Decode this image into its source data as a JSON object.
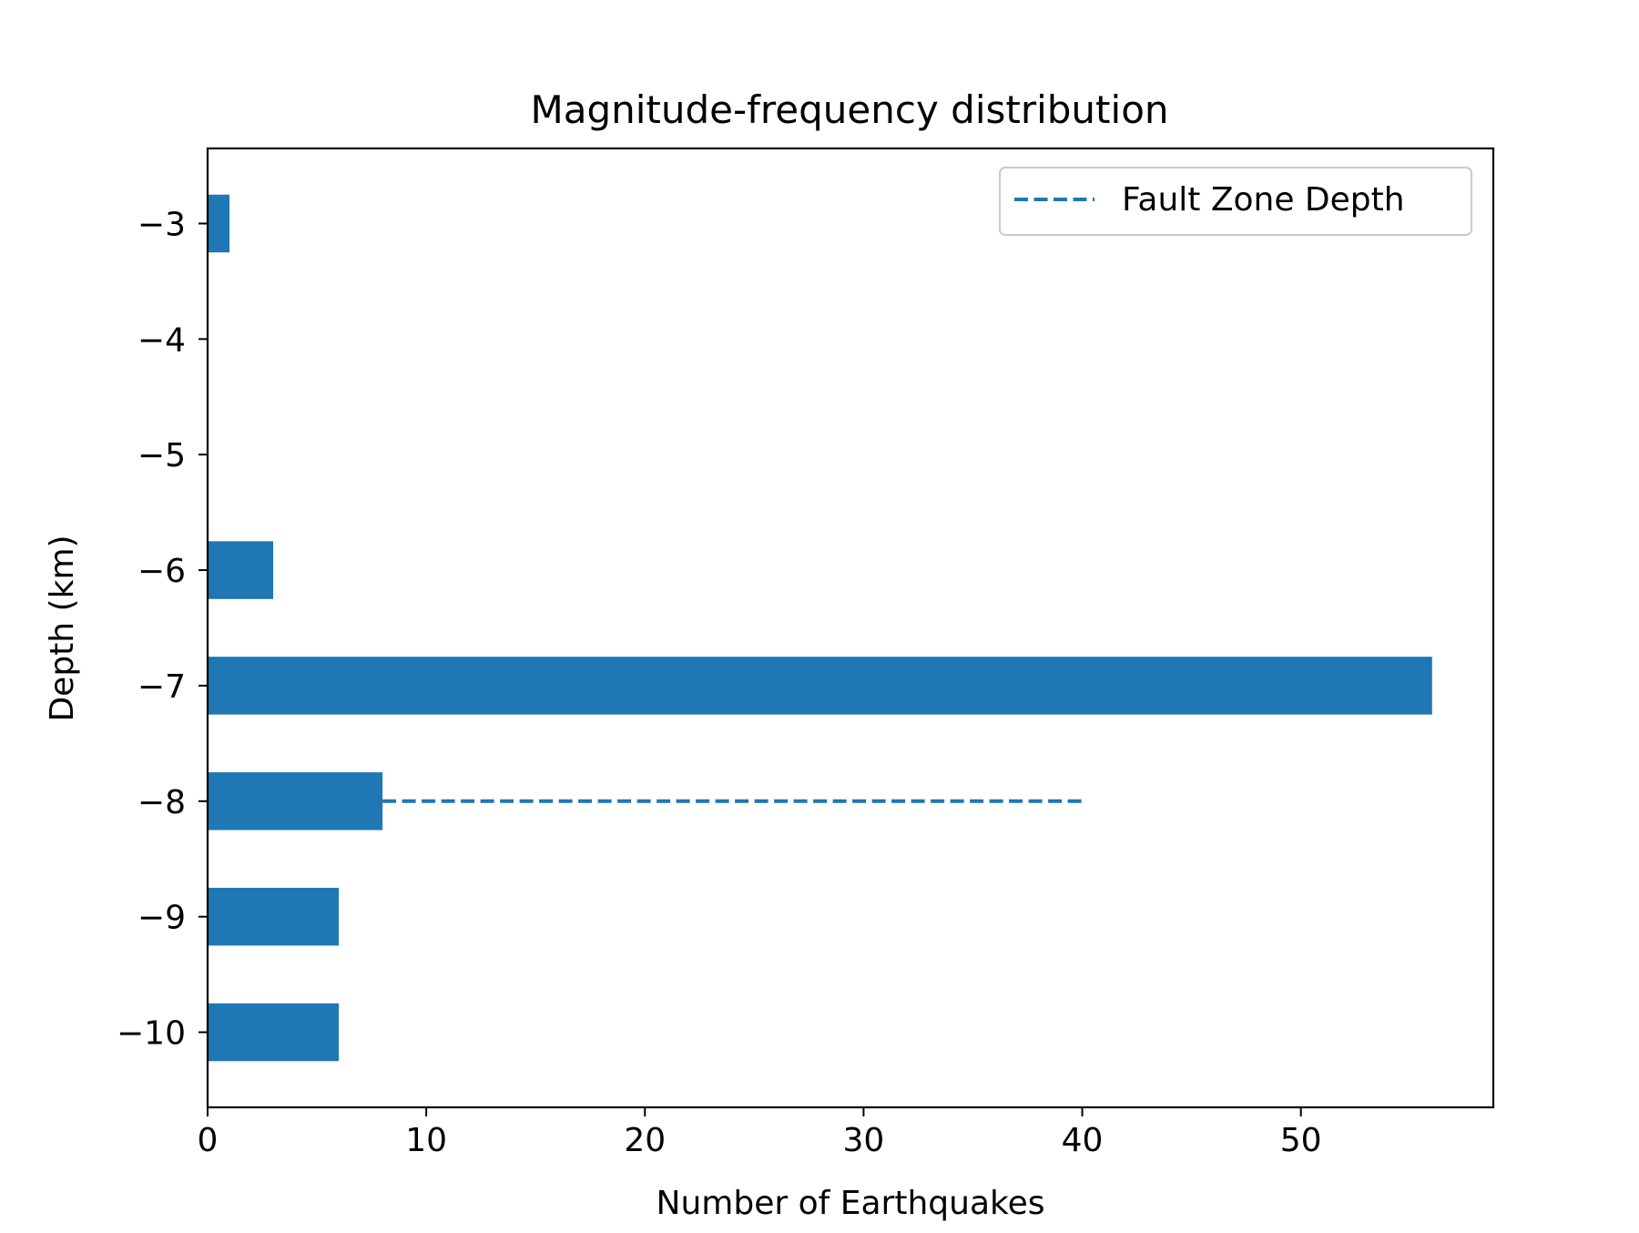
{
  "chart_data": {
    "type": "bar",
    "orientation": "horizontal",
    "title": "Magnitude-frequency distribution",
    "xlabel": "Number of Earthquakes",
    "ylabel": "Depth (km)",
    "xlim": [
      0,
      58.8
    ],
    "ylim": [
      -10.65,
      -2.35
    ],
    "xticks": [
      0,
      10,
      20,
      30,
      40,
      50
    ],
    "yticks": [
      -3,
      -4,
      -5,
      -6,
      -7,
      -8,
      -9,
      -10
    ],
    "ytick_labels": [
      "−3",
      "−4",
      "−5",
      "−6",
      "−7",
      "−8",
      "−9",
      "−10"
    ],
    "bar_height": 0.5,
    "bar_color": "#1f77b4",
    "depths": [
      -3,
      -4,
      -5,
      -6,
      -7,
      -8,
      -9,
      -10
    ],
    "values": [
      1,
      0,
      0,
      3,
      56,
      8,
      6,
      6
    ],
    "reference_line": {
      "name": "Fault Zone Depth",
      "y": -8,
      "x_range": [
        8,
        40
      ],
      "style": "dashed",
      "color": "#1f77b4"
    },
    "legend": {
      "position": "top-right",
      "entries": [
        "Fault Zone Depth"
      ]
    },
    "grid": false
  }
}
